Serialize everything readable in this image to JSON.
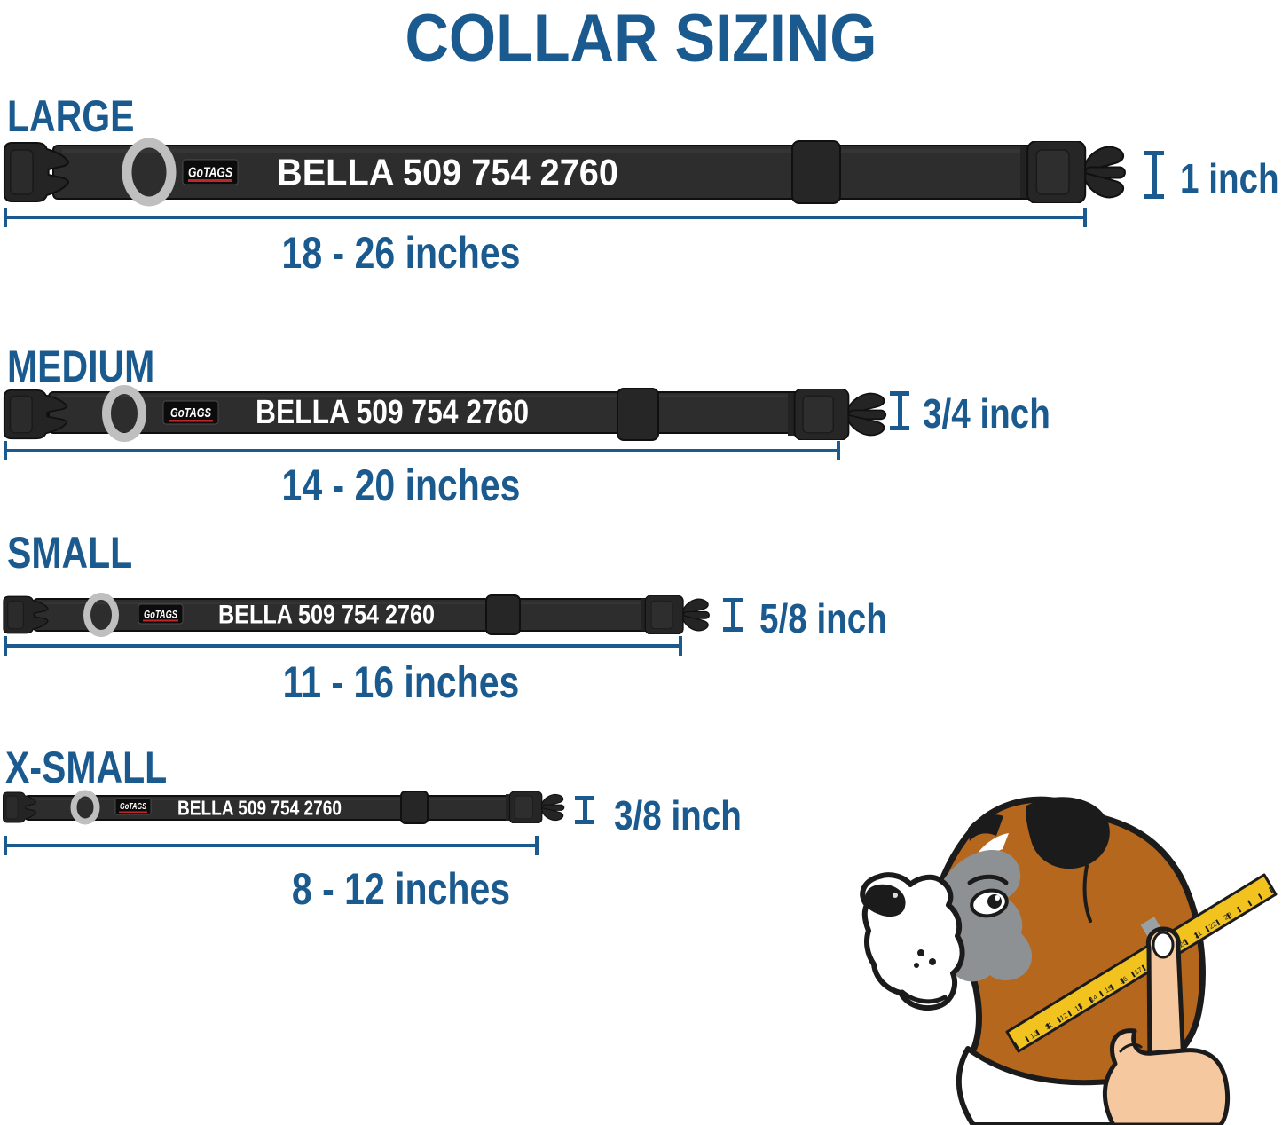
{
  "title": "COLLAR SIZING",
  "sizes": [
    {
      "label": "LARGE",
      "logo_text": "GoTAGS",
      "collar_text": "BELLA 509 754 2760",
      "width_label": "1 inch",
      "length_label": "18 - 26 inches"
    },
    {
      "label": "MEDIUM",
      "logo_text": "GoTAGS",
      "collar_text": "BELLA 509 754 2760",
      "width_label": "3/4 inch",
      "length_label": "14 - 20 inches"
    },
    {
      "label": "SMALL",
      "logo_text": "GoTAGS",
      "collar_text": "BELLA 509 754 2760",
      "width_label": "5/8 inch",
      "length_label": "11 - 16 inches"
    },
    {
      "label": "X-SMALL",
      "logo_text": "GoTAGS",
      "collar_text": "BELLA 509 754 2760",
      "width_label": "3/8 inch",
      "length_label": "8 - 12 inches"
    }
  ],
  "illustration": {
    "description": "boxer dog neck being measured with a yellow tape held by a hand",
    "tape_numbers": [
      "10",
      "11",
      "12",
      "13",
      "14",
      "15",
      "16",
      "17",
      "18",
      "19",
      "20",
      "21",
      "22",
      "23"
    ]
  },
  "colors": {
    "accent_blue": "#1a5a8e",
    "collar_black": "#2d2d2d",
    "buckle_black": "#242424",
    "ring_gray": "#bfbfbf",
    "logo_red": "#c0272d",
    "collar_text_white": "#ffffff",
    "tape_yellow": "#f2c31f",
    "hand_skin": "#f6c8a0",
    "fur_tan": "#b5671e",
    "mask_gray": "#8e9194"
  }
}
